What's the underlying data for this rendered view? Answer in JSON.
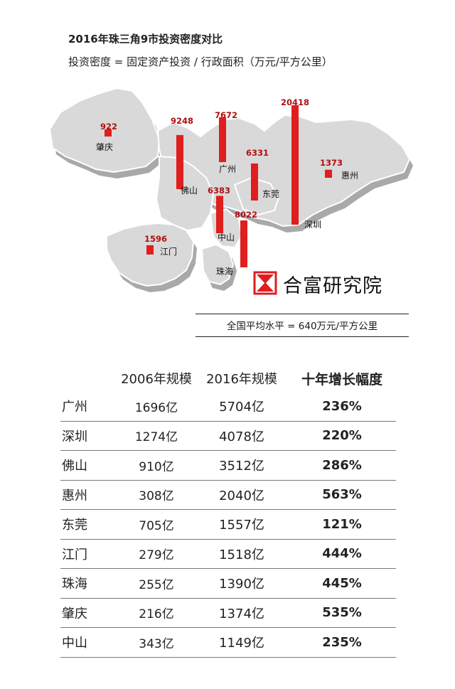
{
  "title": "2016年珠三角9市投资密度对比",
  "subtitle": "投资密度 = 固定资产投资 / 行政面积（万元/平方公里）",
  "brand": "合富研究院",
  "national_note": "全国平均水平 = 640万元/平方公里",
  "colors": {
    "bar": "#e01e1e",
    "land": "#d7d7d7",
    "text": "#222222",
    "bar_label": "#b01010"
  },
  "chart_data": {
    "type": "bar",
    "title": "2016年珠三角9市投资密度对比",
    "subtitle": "投资密度 = 固定资产投资 / 行政面积（万元/平方公里）",
    "unit": "万元/平方公里",
    "categories": [
      "肇庆",
      "佛山",
      "广州",
      "江门",
      "中山",
      "东莞",
      "珠海",
      "深圳",
      "惠州"
    ],
    "values": [
      922,
      9248,
      7672,
      1596,
      6383,
      6331,
      8022,
      20418,
      1373
    ],
    "value_labels": [
      "922",
      "9248",
      "7672",
      "1596",
      "6383",
      "6331",
      "8022",
      "20418",
      "1373"
    ]
  },
  "table": {
    "headers": [
      "",
      "2006年规模",
      "2016年规模",
      "十年增长幅度"
    ],
    "rows": [
      {
        "city": "广州",
        "v2006": "1696亿",
        "v2016": "5704亿",
        "growth": "236%"
      },
      {
        "city": "深圳",
        "v2006": "1274亿",
        "v2016": "4078亿",
        "growth": "220%"
      },
      {
        "city": "佛山",
        "v2006": "910亿",
        "v2016": "3512亿",
        "growth": "286%"
      },
      {
        "city": "惠州",
        "v2006": "308亿",
        "v2016": "2040亿",
        "growth": "563%"
      },
      {
        "city": "东莞",
        "v2006": "705亿",
        "v2016": "1557亿",
        "growth": "121%"
      },
      {
        "city": "江门",
        "v2006": "279亿",
        "v2016": "1518亿",
        "growth": "444%"
      },
      {
        "city": "珠海",
        "v2006": "255亿",
        "v2016": "1390亿",
        "growth": "445%"
      },
      {
        "city": "肇庆",
        "v2006": "216亿",
        "v2016": "1374亿",
        "growth": "535%"
      },
      {
        "city": "中山",
        "v2006": "343亿",
        "v2016": "1149亿",
        "growth": "235%"
      }
    ]
  }
}
